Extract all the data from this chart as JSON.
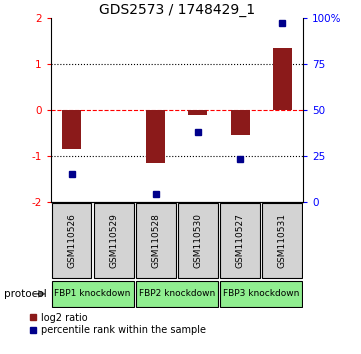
{
  "title": "GDS2573 / 1748429_1",
  "samples": [
    "GSM110526",
    "GSM110529",
    "GSM110528",
    "GSM110530",
    "GSM110527",
    "GSM110531"
  ],
  "log2_ratio": [
    -0.85,
    0.0,
    -1.15,
    -0.12,
    -0.55,
    1.35
  ],
  "percentile": [
    15,
    null,
    4,
    38,
    23,
    97
  ],
  "ylim_left": [
    -2,
    2
  ],
  "ylim_right": [
    0,
    100
  ],
  "yticks_left": [
    -2,
    -1,
    0,
    1,
    2
  ],
  "yticks_right": [
    0,
    25,
    50,
    75,
    100
  ],
  "yticklabels_right": [
    "0",
    "25",
    "50",
    "75",
    "100%"
  ],
  "hlines_dotted": [
    -1,
    1
  ],
  "hline_red_dashed": 0,
  "bar_color": "#8B1A1A",
  "dot_color": "#00008B",
  "bar_width": 0.45,
  "protocols": [
    {
      "label": "FBP1 knockdown",
      "samples": [
        0,
        1
      ],
      "color": "#90EE90"
    },
    {
      "label": "FBP2 knockdown",
      "samples": [
        2,
        3
      ],
      "color": "#90EE90"
    },
    {
      "label": "FBP3 knockdown",
      "samples": [
        4,
        5
      ],
      "color": "#90EE90"
    }
  ],
  "protocol_label": "protocol",
  "legend_red_label": "log2 ratio",
  "legend_blue_label": "percentile rank within the sample",
  "bg_color": "#FFFFFF",
  "sample_box_color": "#D3D3D3",
  "title_fontsize": 10,
  "tick_fontsize": 7.5,
  "label_fontsize": 8
}
